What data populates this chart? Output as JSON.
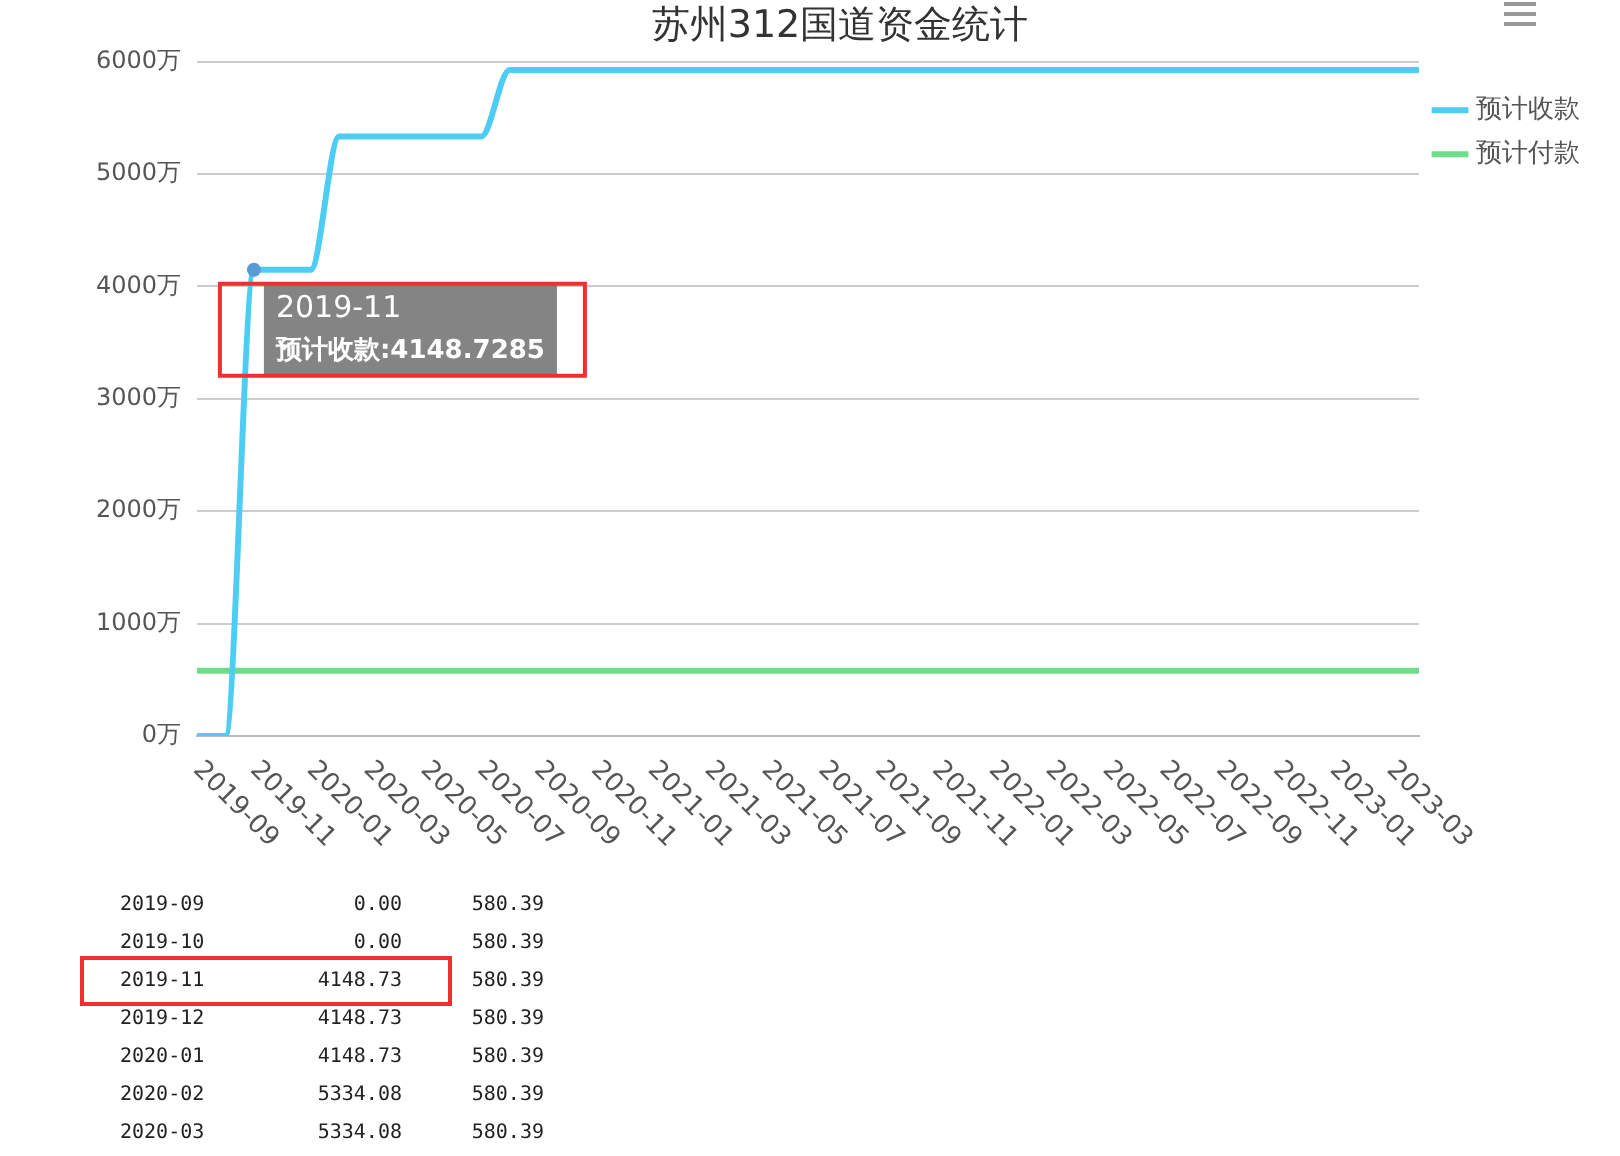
{
  "chart_data": {
    "type": "line",
    "title": "苏州312国道资金统计",
    "categories": [
      "2019-09",
      null,
      "2019-11",
      null,
      "2020-01",
      null,
      "2020-03",
      null,
      "2020-05",
      null,
      "2020-07",
      null,
      "2020-09",
      null,
      "2020-11",
      null,
      "2021-01",
      null,
      "2021-03",
      null,
      "2021-05",
      null,
      "2021-07",
      null,
      "2021-09",
      null,
      "2021-11",
      null,
      "2022-01",
      null,
      "2022-03",
      null,
      "2022-05",
      null,
      "2022-07",
      null,
      "2022-09",
      null,
      "2022-11",
      null,
      "2023-01",
      null,
      "2023-03",
      null
    ],
    "series": [
      {
        "name": "预计收款",
        "color": "#4ecdf4",
        "values": [
          0,
          0,
          4148.7285,
          4148.73,
          4148.73,
          5334.08,
          5334.08,
          5334.08,
          5334.08,
          5334.08,
          5334.08,
          5925,
          5925,
          5925,
          5925,
          5925,
          5925,
          5925,
          5925,
          5925,
          5925,
          5925,
          5925,
          5925,
          5925,
          5925,
          5925,
          5925,
          5925,
          5925,
          5925,
          5925,
          5925,
          5925,
          5925,
          5925,
          5925,
          5925,
          5925,
          5925,
          5925,
          5925,
          5925,
          5925
        ]
      },
      {
        "name": "预计付款",
        "color": "#6fdc8c",
        "values": [
          580.39,
          580.39,
          580.39,
          580.39,
          580.39,
          580.39,
          580.39,
          580.39,
          580.39,
          580.39,
          580.39,
          580.39,
          580.39,
          580.39,
          580.39,
          580.39,
          580.39,
          580.39,
          580.39,
          580.39,
          580.39,
          580.39,
          580.39,
          580.39,
          580.39,
          580.39,
          580.39,
          580.39,
          580.39,
          580.39,
          580.39,
          580.39,
          580.39,
          580.39,
          580.39,
          580.39,
          580.39,
          580.39,
          580.39,
          580.39,
          580.39,
          580.39,
          580.39,
          580.39
        ]
      }
    ],
    "ylim": [
      0,
      6000
    ],
    "yticks": [
      {
        "value": 0,
        "label": "0万"
      },
      {
        "value": 1000,
        "label": "1000万"
      },
      {
        "value": 2000,
        "label": "2000万"
      },
      {
        "value": 3000,
        "label": "3000万"
      },
      {
        "value": 4000,
        "label": "4000万"
      },
      {
        "value": 5000,
        "label": "5000万"
      },
      {
        "value": 6000,
        "label": "6000万"
      }
    ],
    "grid": "y",
    "legend": "top right",
    "marker": "none",
    "line_style": "solid",
    "annotations": [
      {
        "text": "2019-11\n预计收款:4148.7285",
        "x": "2019-11",
        "y": 4148.7285
      },
      "2019-09\t0.00\t580.39",
      "2019-10\t0.00\t580.39",
      "2019-11\t4148.73\t580.39",
      "2019-12\t4148.73\t580.39",
      "2020-01\t4148.73\t580.39",
      "2020-02\t5334.08\t580.39",
      "2020-03\t5334.08\t580.39"
    ]
  }
}
